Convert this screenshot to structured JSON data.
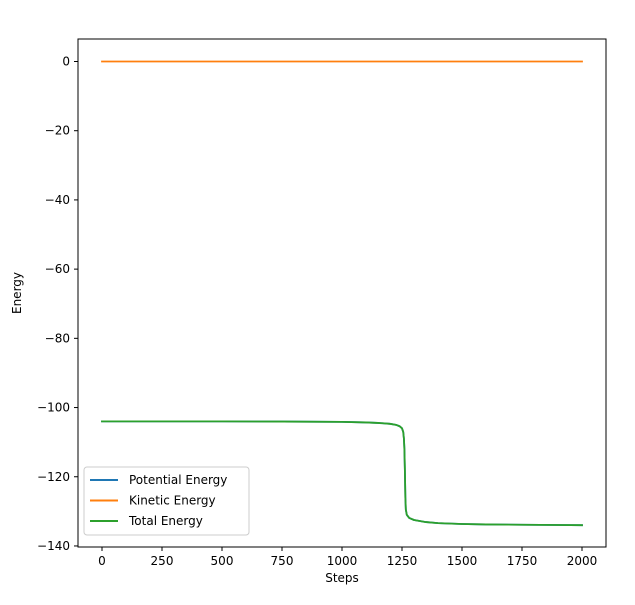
{
  "chart_data": {
    "type": "line",
    "title": "",
    "xlabel": "Steps",
    "ylabel": "Energy",
    "xlim": [
      -100,
      2100
    ],
    "ylim": [
      -140.3,
      6.5
    ],
    "xticks": [
      0,
      250,
      500,
      750,
      1000,
      1250,
      1500,
      1750,
      2000
    ],
    "xtick_labels": [
      "0",
      "250",
      "500",
      "750",
      "1000",
      "1250",
      "1500",
      "1750",
      "2000"
    ],
    "yticks": [
      0,
      -20,
      -40,
      -60,
      -80,
      -100,
      -120,
      -140
    ],
    "ytick_labels": [
      "0",
      "−20",
      "−40",
      "−60",
      "−80",
      "−100",
      "−120",
      "−140"
    ],
    "grid": false,
    "legend_position": "lower-left",
    "series": [
      {
        "name": "Potential Energy",
        "color": "#1f77b4",
        "x": [
          0,
          250,
          500,
          750,
          1000,
          1100,
          1150,
          1200,
          1225,
          1240,
          1250,
          1255,
          1258,
          1260,
          1262,
          1264,
          1266,
          1270,
          1280,
          1300,
          1350,
          1400,
          1500,
          1600,
          1750,
          1900,
          2000
        ],
        "y": [
          -104.0,
          -104.0,
          -104.0,
          -104.05,
          -104.15,
          -104.3,
          -104.45,
          -104.7,
          -105.0,
          -105.4,
          -106.0,
          -107.0,
          -109.0,
          -112.0,
          -118.0,
          -126.0,
          -129.5,
          -131.0,
          -131.9,
          -132.5,
          -133.1,
          -133.4,
          -133.65,
          -133.78,
          -133.88,
          -133.95,
          -134.0
        ]
      },
      {
        "name": "Kinetic Energy",
        "color": "#ff7f0e",
        "x": [
          0,
          500,
          1000,
          1500,
          2000
        ],
        "y": [
          0.0,
          0.0,
          0.0,
          0.0,
          0.0
        ]
      },
      {
        "name": "Total Energy",
        "color": "#2ca02c",
        "x": [
          0,
          250,
          500,
          750,
          1000,
          1100,
          1150,
          1200,
          1225,
          1240,
          1250,
          1255,
          1258,
          1260,
          1262,
          1264,
          1266,
          1270,
          1280,
          1300,
          1350,
          1400,
          1500,
          1600,
          1750,
          1900,
          2000
        ],
        "y": [
          -104.0,
          -104.0,
          -104.0,
          -104.05,
          -104.15,
          -104.3,
          -104.45,
          -104.7,
          -105.0,
          -105.4,
          -106.0,
          -107.0,
          -109.0,
          -112.0,
          -118.0,
          -126.0,
          -129.5,
          -131.0,
          -131.9,
          -132.5,
          -133.1,
          -133.4,
          -133.65,
          -133.78,
          -133.88,
          -133.95,
          -134.0
        ]
      }
    ]
  }
}
